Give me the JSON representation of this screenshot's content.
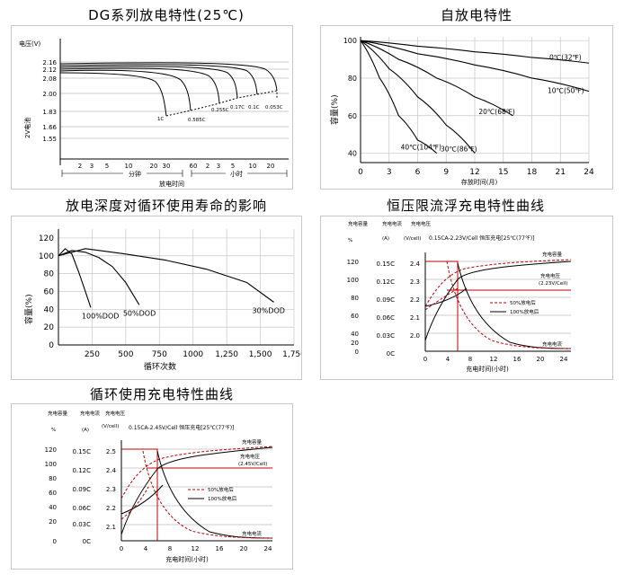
{
  "charts": {
    "discharge": {
      "title": "DG系列放电特性(25℃)",
      "ylabel": "2V电池",
      "yunit": "电压(V)",
      "xlabel": "放电时间",
      "y_ticks": [
        "2.16",
        "2.12",
        "2.08",
        "2.00",
        "1.83",
        "1.66",
        "1.55"
      ],
      "x_ticks": [
        "2",
        "3",
        "5",
        "10",
        "20",
        "30",
        "60",
        "2",
        "3",
        "5",
        "10",
        "20"
      ],
      "x_group_minutes": "分钟",
      "x_group_hours": "小时",
      "curve_labels": [
        "1C",
        "0.585C",
        "0.255C",
        "0.17C",
        "0.1C",
        "0.053C"
      ]
    },
    "self_discharge": {
      "title": "自放电特性",
      "ylabel": "容量(%)",
      "xlabel": "存放时间(月)",
      "y_ticks": [
        "100",
        "80",
        "60",
        "40"
      ],
      "x_ticks": [
        "0",
        "3",
        "6",
        "9",
        "12",
        "15",
        "18",
        "21",
        "24"
      ],
      "chart_data": {
        "type": "line",
        "xlim": [
          0,
          24
        ],
        "ylim": [
          35,
          102
        ],
        "series": [
          {
            "name": "0℃(32℉)",
            "x": [
              0,
              6,
              12,
              18,
              24
            ],
            "y": [
              100,
              97,
              94,
              91,
              88
            ]
          },
          {
            "name": "10℃(50℉)",
            "x": [
              0,
              6,
              12,
              18,
              24
            ],
            "y": [
              100,
              93,
              87,
              80,
              73
            ]
          },
          {
            "name": "20℃(68℉)",
            "x": [
              0,
              4,
              8,
              12,
              16
            ],
            "y": [
              100,
              90,
              80,
              70,
              60
            ]
          },
          {
            "name": "30℃(86℉)",
            "x": [
              0,
              3,
              6,
              9,
              12
            ],
            "y": [
              100,
              85,
              70,
              55,
              40
            ]
          },
          {
            "name": "40℃(104℉)",
            "x": [
              0,
              2,
              4,
              6,
              8
            ],
            "y": [
              100,
              80,
              60,
              47,
              40
            ]
          }
        ]
      }
    },
    "cycle_life": {
      "title": "放电深度对循环使用寿命的影响",
      "ylabel": "容量(%)",
      "xlabel": "循环次数",
      "y_ticks": [
        "120",
        "100",
        "80",
        "60",
        "40",
        "20",
        "0"
      ],
      "x_ticks": [
        "250",
        "500",
        "750",
        "1000",
        "1,250",
        "1,500",
        "1,750"
      ],
      "chart_data": {
        "type": "line",
        "xlim": [
          0,
          1750
        ],
        "ylim": [
          0,
          130
        ],
        "series": [
          {
            "name": "100%DOD",
            "x": [
              0,
              50,
              100,
              150,
              200,
              240
            ],
            "y": [
              100,
              108,
              102,
              82,
              60,
              42
            ]
          },
          {
            "name": "50%DOD",
            "x": [
              0,
              100,
              200,
              300,
              400,
              500,
              600
            ],
            "y": [
              100,
              106,
              104,
              98,
              88,
              70,
              45
            ]
          },
          {
            "name": "30%DOD",
            "x": [
              0,
              200,
              500,
              800,
              1100,
              1400,
              1600
            ],
            "y": [
              100,
              108,
              102,
              95,
              85,
              70,
              48
            ]
          }
        ]
      }
    },
    "float_charge": {
      "title": "恒压限流浮充电特性曲线",
      "col_headers": [
        "充电容量",
        "充电电流",
        "充电电压"
      ],
      "units": [
        "%",
        "(A)",
        "(V/cell)"
      ],
      "condition": "0.15CA-2.23V/Cell 恒压充电[25℃(77℉)]",
      "y1_ticks": [
        "120",
        "100",
        "80",
        "60",
        "40",
        "20",
        "0"
      ],
      "y2_ticks": [
        "0.15C",
        "0.12C",
        "0.09C",
        "0.06C",
        "0.03C",
        "0C"
      ],
      "y3_ticks": [
        "2.4",
        "2.3",
        "2.2",
        "2.1",
        "2.0"
      ],
      "x_ticks": [
        "0",
        "4",
        "8",
        "12",
        "16",
        "20",
        "24"
      ],
      "xlabel": "充电时间(小时)",
      "labels": {
        "capacity": "充电容量",
        "voltage": "充电电压",
        "voltage_spec": "(2.23V/Cell)",
        "current": "充电电流"
      },
      "legend": [
        "50%放电后",
        "100%放电后"
      ]
    },
    "cycle_charge": {
      "title": "循环使用充电特性曲线",
      "col_headers": [
        "充电容量",
        "充电电流",
        "充电电压"
      ],
      "units": [
        "%",
        "(A)",
        "(V/cell)"
      ],
      "condition": "0.15CA-2.45V/Cell 恒压充电[25℃(77℉)]",
      "y1_ticks": [
        "120",
        "100",
        "80",
        "60",
        "40",
        "20",
        "0"
      ],
      "y2_ticks": [
        "0.15C",
        "0.12C",
        "0.09C",
        "0.06C",
        "0.03C",
        "0C"
      ],
      "y3_ticks": [
        "2.5",
        "2.4",
        "2.3",
        "2.2",
        "2.1"
      ],
      "x_ticks": [
        "0",
        "4",
        "8",
        "12",
        "16",
        "20",
        "24"
      ],
      "xlabel": "充电时间(小时)",
      "labels": {
        "capacity": "充电容量",
        "voltage": "充电电压",
        "voltage_spec": "(2.45V/Cell)",
        "current": "充电电流"
      },
      "legend": [
        "50%放电后",
        "100%放电后"
      ]
    }
  }
}
